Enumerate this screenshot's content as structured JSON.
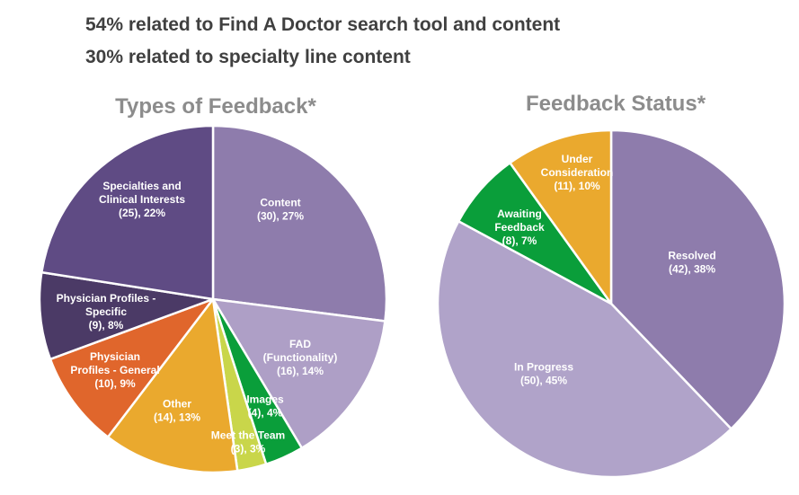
{
  "headlines": {
    "line1": "54% related to Find A Doctor search tool and content",
    "line2": "30% related to specialty line content"
  },
  "chart_data": [
    {
      "type": "pie",
      "title": "Types of Feedback*",
      "slices": [
        {
          "label": "Content",
          "count": 30,
          "percent": 27,
          "color": "#8e7cac",
          "lines": [
            "Content",
            "(30), 27%"
          ]
        },
        {
          "label": "FAD (Functionality)",
          "count": 16,
          "percent": 14,
          "color": "#ae9fc6",
          "lines": [
            "FAD",
            "(Functionality)",
            "(16), 14%"
          ]
        },
        {
          "label": "Images",
          "count": 4,
          "percent": 4,
          "color": "#0a9e3a",
          "lines": [
            "Images",
            "(4), 4%"
          ]
        },
        {
          "label": "Meet the Team",
          "count": 3,
          "percent": 3,
          "color": "#c9d64a",
          "lines": [
            "Meet the Team",
            "(3), 3%"
          ]
        },
        {
          "label": "Other",
          "count": 14,
          "percent": 13,
          "color": "#eaa92e",
          "lines": [
            "Other",
            "(14), 13%"
          ]
        },
        {
          "label": "Physician Profiles - General",
          "count": 10,
          "percent": 9,
          "color": "#e0662c",
          "lines": [
            "Physician",
            "Profiles - General",
            "(10), 9%"
          ]
        },
        {
          "label": "Physician Profiles - Specific",
          "count": 9,
          "percent": 8,
          "color": "#4b3a66",
          "lines": [
            "Physician Profiles -",
            "Specific",
            "(9), 8%"
          ]
        },
        {
          "label": "Specialties and Clinical Interests",
          "count": 25,
          "percent": 22,
          "color": "#5f4b84",
          "lines": [
            "Specialties and",
            "Clinical Interests",
            "(25), 22%"
          ]
        }
      ]
    },
    {
      "type": "pie",
      "title": "Feedback Status*",
      "slices": [
        {
          "label": "Resolved",
          "count": 42,
          "percent": 38,
          "color": "#8e7cac",
          "lines": [
            "Resolved",
            "(42), 38%"
          ]
        },
        {
          "label": "In Progress",
          "count": 50,
          "percent": 45,
          "color": "#b0a3c9",
          "lines": [
            "In Progress",
            "(50), 45%"
          ]
        },
        {
          "label": "Awaiting Feedback",
          "count": 8,
          "percent": 7,
          "color": "#0a9e3a",
          "lines": [
            "Awaiting",
            "Feedback",
            "(8), 7%"
          ]
        },
        {
          "label": "Under Consideration",
          "count": 11,
          "percent": 10,
          "color": "#eaa92e",
          "lines": [
            "Under",
            "Consideration",
            "(11), 10%"
          ]
        }
      ]
    }
  ]
}
